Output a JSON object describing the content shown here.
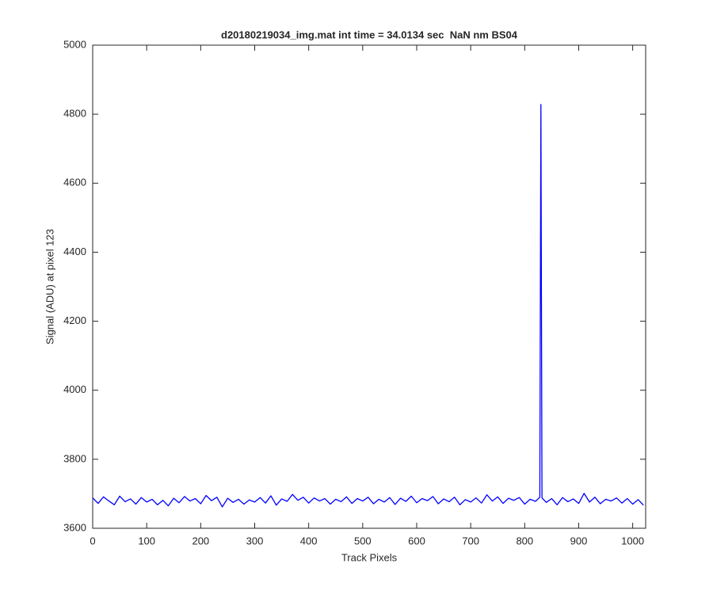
{
  "chart_data": {
    "type": "line",
    "title": "d20180219034_img.mat int time = 34.0134 sec  NaN nm BS04",
    "x_label": "Track Pixels",
    "y_label": "Signal (ADU) at pixel 123",
    "x": [
      0,
      10,
      20,
      30,
      40,
      50,
      60,
      70,
      80,
      90,
      100,
      110,
      120,
      130,
      140,
      150,
      160,
      170,
      180,
      190,
      200,
      210,
      220,
      230,
      240,
      250,
      260,
      270,
      280,
      290,
      300,
      310,
      320,
      330,
      340,
      350,
      360,
      370,
      380,
      390,
      400,
      410,
      420,
      430,
      440,
      450,
      460,
      470,
      480,
      490,
      500,
      510,
      520,
      530,
      540,
      550,
      560,
      570,
      580,
      590,
      600,
      610,
      620,
      630,
      640,
      650,
      660,
      670,
      680,
      690,
      700,
      710,
      720,
      730,
      740,
      750,
      760,
      770,
      780,
      790,
      800,
      810,
      820,
      828,
      830,
      832,
      840,
      850,
      860,
      870,
      880,
      890,
      900,
      910,
      920,
      930,
      940,
      950,
      960,
      970,
      980,
      990,
      1000,
      1010,
      1020
    ],
    "series": [
      {
        "name": "signal",
        "color": "#0000ff",
        "values": [
          3688,
          3672,
          3691,
          3679,
          3668,
          3693,
          3677,
          3685,
          3670,
          3689,
          3676,
          3684,
          3668,
          3681,
          3665,
          3687,
          3674,
          3692,
          3679,
          3686,
          3671,
          3695,
          3680,
          3690,
          3662,
          3687,
          3675,
          3684,
          3670,
          3682,
          3676,
          3689,
          3673,
          3694,
          3667,
          3685,
          3678,
          3698,
          3681,
          3690,
          3673,
          3688,
          3679,
          3686,
          3670,
          3684,
          3677,
          3691,
          3672,
          3686,
          3679,
          3690,
          3671,
          3684,
          3676,
          3689,
          3669,
          3687,
          3678,
          3693,
          3674,
          3686,
          3680,
          3692,
          3671,
          3685,
          3677,
          3690,
          3668,
          3683,
          3676,
          3688,
          3673,
          3697,
          3679,
          3691,
          3672,
          3687,
          3681,
          3689,
          3670,
          3684,
          3678,
          3690,
          4828,
          3688,
          3675,
          3686,
          3668,
          3689,
          3677,
          3685,
          3672,
          3701,
          3676,
          3690,
          3671,
          3684,
          3679,
          3688,
          3673,
          3686,
          3670,
          3683,
          3667
        ]
      }
    ],
    "xlim": [
      0,
      1024
    ],
    "ylim": [
      3600,
      5000
    ],
    "xticks": [
      0,
      100,
      200,
      300,
      400,
      500,
      600,
      700,
      800,
      900,
      1000
    ],
    "yticks": [
      3600,
      3800,
      4000,
      4200,
      4400,
      4600,
      4800,
      5000
    ],
    "grid": false
  }
}
